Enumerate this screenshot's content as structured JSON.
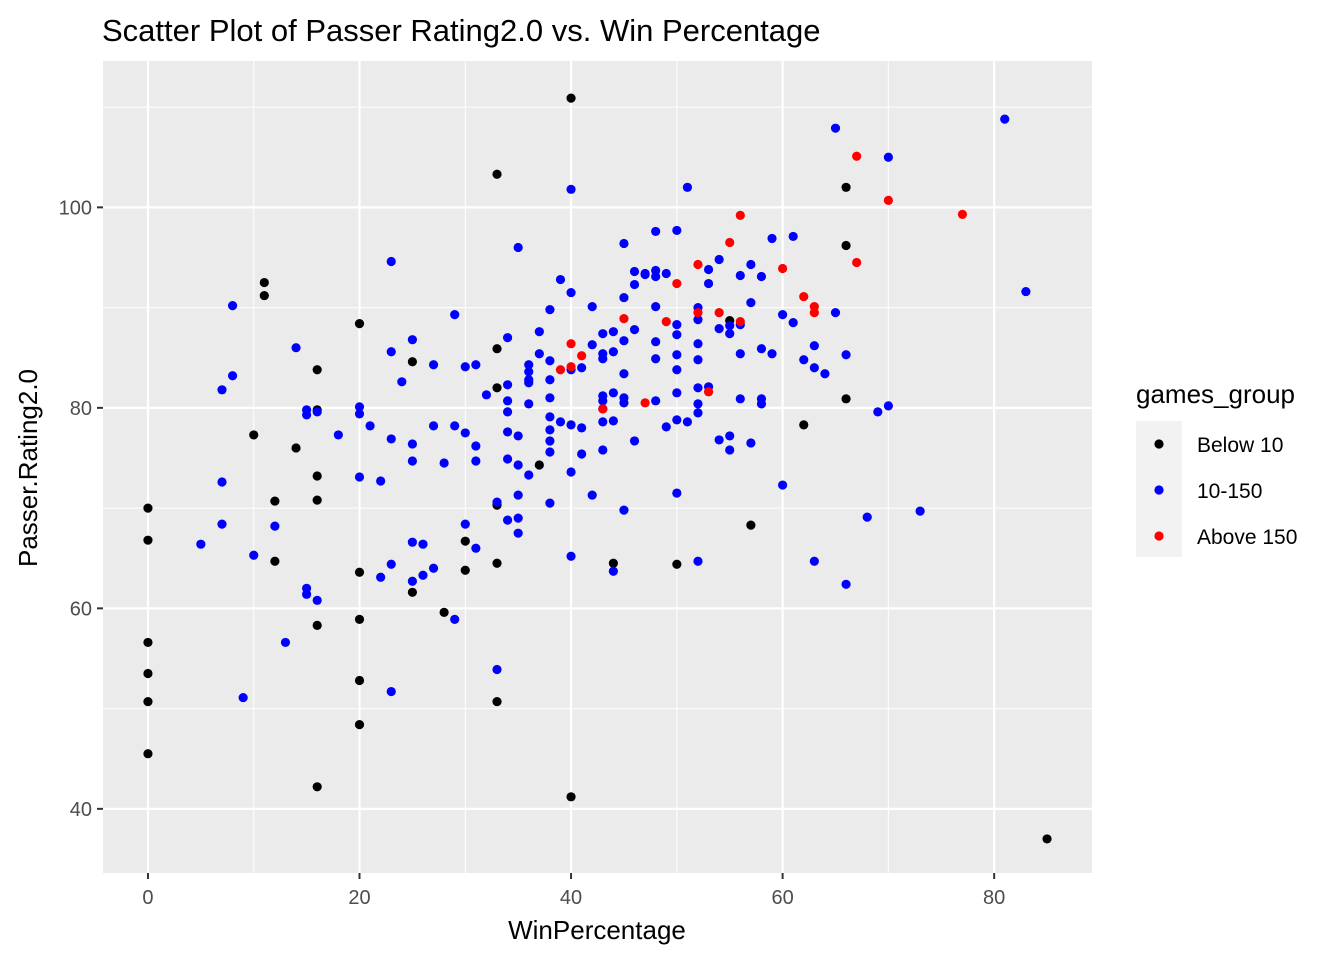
{
  "chart_data": {
    "type": "scatter",
    "title": "Scatter Plot of Passer Rating2.0 vs. Win Percentage",
    "xlabel": "WinPercentage",
    "ylabel": "Passer.Rating2.0",
    "xlim": [
      -4.25,
      89.25
    ],
    "ylim": [
      33.6,
      114.6
    ],
    "x_ticks": [
      0,
      20,
      40,
      60,
      80
    ],
    "y_ticks": [
      40,
      60,
      80,
      100
    ],
    "x_tick_labels": [
      "0",
      "20",
      "40",
      "60",
      "80"
    ],
    "y_tick_labels": [
      "40",
      "60",
      "80",
      "100"
    ],
    "x_minor": [
      10,
      30,
      50,
      70
    ],
    "y_minor": [
      50,
      70,
      90,
      110
    ],
    "grid": true,
    "legend": {
      "title": "games_group",
      "position": "right"
    },
    "colors": {
      "panel": "#ebebeb",
      "grid": "#ffffff"
    },
    "series": [
      {
        "name": "Below 10",
        "color": "#000000",
        "points": [
          [
            0,
            70
          ],
          [
            0,
            66.8
          ],
          [
            0,
            56.6
          ],
          [
            0,
            53.5
          ],
          [
            0,
            50.7
          ],
          [
            0,
            45.5
          ],
          [
            10,
            77.3
          ],
          [
            11,
            92.5
          ],
          [
            11,
            91.2
          ],
          [
            12,
            70.7
          ],
          [
            12,
            64.7
          ],
          [
            14,
            76
          ],
          [
            16,
            83.8
          ],
          [
            16,
            79.8
          ],
          [
            16,
            73.2
          ],
          [
            16,
            70.8
          ],
          [
            16,
            58.3
          ],
          [
            16,
            42.2
          ],
          [
            20,
            88.4
          ],
          [
            20,
            63.6
          ],
          [
            20,
            58.9
          ],
          [
            20,
            52.8
          ],
          [
            20,
            48.4
          ],
          [
            25,
            84.6
          ],
          [
            25,
            61.6
          ],
          [
            28,
            59.6
          ],
          [
            30,
            66.7
          ],
          [
            30,
            63.8
          ],
          [
            33,
            103.3
          ],
          [
            33,
            85.9
          ],
          [
            33,
            82
          ],
          [
            33,
            70.3
          ],
          [
            33,
            64.5
          ],
          [
            33,
            50.7
          ],
          [
            37,
            74.3
          ],
          [
            40,
            110.9
          ],
          [
            40,
            41.2
          ],
          [
            44,
            64.5
          ],
          [
            50,
            64.4
          ],
          [
            55,
            88.7
          ],
          [
            57,
            68.3
          ],
          [
            62,
            78.3
          ],
          [
            66,
            102
          ],
          [
            66,
            96.2
          ],
          [
            66,
            80.9
          ],
          [
            85,
            37
          ]
        ]
      },
      {
        "name": "10-150",
        "color": "#0000ff",
        "points": [
          [
            5,
            66.4
          ],
          [
            7,
            81.8
          ],
          [
            7,
            72.6
          ],
          [
            7,
            68.4
          ],
          [
            8,
            90.2
          ],
          [
            8,
            83.2
          ],
          [
            9,
            51.1
          ],
          [
            10,
            65.3
          ],
          [
            12,
            68.2
          ],
          [
            13,
            56.6
          ],
          [
            14,
            86
          ],
          [
            15,
            79.8
          ],
          [
            15,
            79.3
          ],
          [
            15,
            62
          ],
          [
            15,
            61.4
          ],
          [
            16,
            79.6
          ],
          [
            16,
            60.8
          ],
          [
            18,
            77.3
          ],
          [
            20,
            80.1
          ],
          [
            20,
            79.4
          ],
          [
            20,
            73.1
          ],
          [
            21,
            78.2
          ],
          [
            22,
            72.7
          ],
          [
            22,
            63.1
          ],
          [
            23,
            94.6
          ],
          [
            23,
            85.6
          ],
          [
            23,
            76.9
          ],
          [
            23,
            64.4
          ],
          [
            23,
            51.7
          ],
          [
            24,
            82.6
          ],
          [
            25,
            86.8
          ],
          [
            25,
            76.4
          ],
          [
            25,
            74.7
          ],
          [
            25,
            66.6
          ],
          [
            25,
            62.7
          ],
          [
            26,
            66.4
          ],
          [
            26,
            63.3
          ],
          [
            27,
            84.3
          ],
          [
            27,
            78.2
          ],
          [
            27,
            64
          ],
          [
            28,
            74.5
          ],
          [
            29,
            89.3
          ],
          [
            29,
            78.2
          ],
          [
            29,
            58.9
          ],
          [
            30,
            84.1
          ],
          [
            30,
            77.5
          ],
          [
            30,
            68.4
          ],
          [
            31,
            84.3
          ],
          [
            31,
            76.2
          ],
          [
            31,
            74.7
          ],
          [
            31,
            66
          ],
          [
            32,
            81.3
          ],
          [
            33,
            70.6
          ],
          [
            33,
            53.9
          ],
          [
            34,
            87
          ],
          [
            34,
            82.3
          ],
          [
            34,
            80.7
          ],
          [
            34,
            79.6
          ],
          [
            34,
            77.6
          ],
          [
            34,
            74.9
          ],
          [
            34,
            68.8
          ],
          [
            35,
            96
          ],
          [
            35,
            77.2
          ],
          [
            35,
            74.3
          ],
          [
            35,
            71.3
          ],
          [
            35,
            69
          ],
          [
            35,
            67.5
          ],
          [
            36,
            84.3
          ],
          [
            36,
            83.6
          ],
          [
            36,
            82.8
          ],
          [
            36,
            80.4
          ],
          [
            36,
            73.3
          ],
          [
            36,
            82.5
          ],
          [
            37,
            87.6
          ],
          [
            37,
            85.4
          ],
          [
            38,
            89.8
          ],
          [
            38,
            84.7
          ],
          [
            38,
            82.8
          ],
          [
            38,
            81
          ],
          [
            38,
            79.1
          ],
          [
            38,
            77.8
          ],
          [
            38,
            76.7
          ],
          [
            38,
            75.6
          ],
          [
            38,
            70.5
          ],
          [
            39,
            92.8
          ],
          [
            39,
            78.6
          ],
          [
            40,
            101.8
          ],
          [
            40,
            91.5
          ],
          [
            40,
            83.8
          ],
          [
            40,
            78.3
          ],
          [
            40,
            73.6
          ],
          [
            40,
            65.2
          ],
          [
            41,
            84
          ],
          [
            41,
            78
          ],
          [
            41,
            75.4
          ],
          [
            42,
            90.1
          ],
          [
            42,
            86.3
          ],
          [
            42,
            71.3
          ],
          [
            43,
            87.4
          ],
          [
            43,
            85.4
          ],
          [
            43,
            84.9
          ],
          [
            43,
            81.2
          ],
          [
            43,
            80.7
          ],
          [
            43,
            79.9
          ],
          [
            43,
            78.6
          ],
          [
            43,
            75.8
          ],
          [
            44,
            87.6
          ],
          [
            44,
            85.6
          ],
          [
            44,
            81.5
          ],
          [
            44,
            78.7
          ],
          [
            44,
            63.7
          ],
          [
            45,
            96.4
          ],
          [
            45,
            91
          ],
          [
            45,
            86.7
          ],
          [
            45,
            83.4
          ],
          [
            45,
            81
          ],
          [
            45,
            80.5
          ],
          [
            45,
            69.8
          ],
          [
            46,
            93.6
          ],
          [
            46,
            92.3
          ],
          [
            46,
            87.8
          ],
          [
            46,
            76.7
          ],
          [
            47,
            93.4
          ],
          [
            47,
            93.3
          ],
          [
            48,
            97.6
          ],
          [
            48,
            93.7
          ],
          [
            48,
            93.1
          ],
          [
            48,
            90.1
          ],
          [
            48,
            86.6
          ],
          [
            48,
            84.9
          ],
          [
            48,
            80.7
          ],
          [
            49,
            93.4
          ],
          [
            49,
            78.1
          ],
          [
            50,
            97.7
          ],
          [
            50,
            88.3
          ],
          [
            50,
            87.3
          ],
          [
            50,
            85.3
          ],
          [
            50,
            83.8
          ],
          [
            50,
            81.5
          ],
          [
            50,
            78.8
          ],
          [
            50,
            71.5
          ],
          [
            51,
            102
          ],
          [
            51,
            78.6
          ],
          [
            52,
            90
          ],
          [
            52,
            88.8
          ],
          [
            52,
            86.4
          ],
          [
            52,
            84.8
          ],
          [
            52,
            82
          ],
          [
            52,
            80.4
          ],
          [
            52,
            79.5
          ],
          [
            52,
            64.7
          ],
          [
            53,
            93.8
          ],
          [
            53,
            92.4
          ],
          [
            53,
            82.1
          ],
          [
            54,
            94.8
          ],
          [
            54,
            87.9
          ],
          [
            54,
            76.8
          ],
          [
            55,
            88.2
          ],
          [
            55,
            87.4
          ],
          [
            55,
            77.2
          ],
          [
            55,
            75.8
          ],
          [
            56,
            93.2
          ],
          [
            56,
            88.3
          ],
          [
            56,
            85.4
          ],
          [
            56,
            80.9
          ],
          [
            57,
            94.3
          ],
          [
            57,
            90.5
          ],
          [
            57,
            76.5
          ],
          [
            58,
            93.1
          ],
          [
            58,
            85.9
          ],
          [
            58,
            80.9
          ],
          [
            58,
            80.4
          ],
          [
            59,
            96.9
          ],
          [
            59,
            85.4
          ],
          [
            60,
            89.3
          ],
          [
            60,
            72.3
          ],
          [
            61,
            97.1
          ],
          [
            61,
            88.5
          ],
          [
            62,
            84.8
          ],
          [
            63,
            86.2
          ],
          [
            63,
            84
          ],
          [
            63,
            64.7
          ],
          [
            64,
            83.4
          ],
          [
            65,
            107.9
          ],
          [
            65,
            89.5
          ],
          [
            66,
            85.3
          ],
          [
            66,
            62.4
          ],
          [
            69,
            79.6
          ],
          [
            68,
            69.1
          ],
          [
            70,
            105
          ],
          [
            70,
            80.2
          ],
          [
            73,
            69.7
          ],
          [
            81,
            108.8
          ],
          [
            83,
            91.6
          ]
        ]
      },
      {
        "name": "Above 150",
        "color": "#ff0000",
        "points": [
          [
            39,
            83.8
          ],
          [
            40,
            86.4
          ],
          [
            40,
            84.1
          ],
          [
            41,
            85.2
          ],
          [
            43,
            79.9
          ],
          [
            45,
            88.9
          ],
          [
            47,
            80.5
          ],
          [
            49,
            88.6
          ],
          [
            50,
            92.4
          ],
          [
            52,
            94.3
          ],
          [
            52,
            89.5
          ],
          [
            53,
            81.6
          ],
          [
            54,
            89.5
          ],
          [
            55,
            96.5
          ],
          [
            56,
            99.2
          ],
          [
            56,
            88.6
          ],
          [
            60,
            93.9
          ],
          [
            62,
            91.1
          ],
          [
            63,
            90.1
          ],
          [
            63,
            89.5
          ],
          [
            67,
            105.1
          ],
          [
            67,
            94.5
          ],
          [
            70,
            100.7
          ],
          [
            77,
            99.3
          ]
        ]
      }
    ]
  }
}
